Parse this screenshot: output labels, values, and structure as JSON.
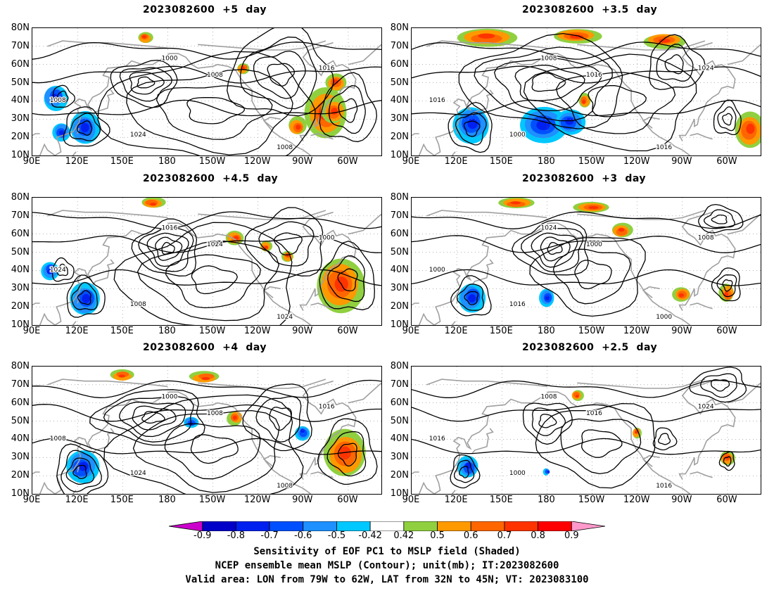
{
  "panels": [
    {
      "title": "2023082600  +5  day",
      "lead_days": 5
    },
    {
      "title": "2023082600  +3.5  day",
      "lead_days": 3.5
    },
    {
      "title": "2023082600  +4.5  day",
      "lead_days": 4.5
    },
    {
      "title": "2023082600  +3  day",
      "lead_days": 3
    },
    {
      "title": "2023082600  +4  day",
      "lead_days": 4
    },
    {
      "title": "2023082600  +2.5  day",
      "lead_days": 2.5
    }
  ],
  "axes": {
    "lat_labels": [
      "80N",
      "70N",
      "60N",
      "50N",
      "40N",
      "30N",
      "20N",
      "10N"
    ],
    "lon_labels": [
      "90E",
      "120E",
      "150E",
      "180",
      "150W",
      "120W",
      "90W",
      "60W"
    ],
    "lat_range": [
      10,
      80
    ],
    "lon_range_east": [
      90,
      322
    ]
  },
  "contours": {
    "unit": "mb",
    "labels_printed": [
      "1000",
      "1008",
      "1016",
      "1024"
    ]
  },
  "colorbar": {
    "labels": [
      "-0.9",
      "-0.8",
      "-0.7",
      "-0.6",
      "-0.5",
      "-0.42",
      "0.42",
      "0.5",
      "0.6",
      "0.7",
      "0.8",
      "0.9"
    ],
    "colors": [
      "#cc00cc",
      "#0000c8",
      "#0020f0",
      "#0050ff",
      "#1e90ff",
      "#00c8ff",
      "#ffffff",
      "#90d040",
      "#ff9900",
      "#ff6600",
      "#ff3300",
      "#ff0000",
      "#ff99cc"
    ]
  },
  "captions": {
    "line1": "Sensitivity of EOF PC1 to MSLP field (Shaded)",
    "line2": "NCEP ensemble mean MSLP (Contour); unit(mb); IT:2023082600",
    "line3": "Valid area: LON from 79W to 62W, LAT from 32N to 45N; VT: 2023083100"
  }
}
